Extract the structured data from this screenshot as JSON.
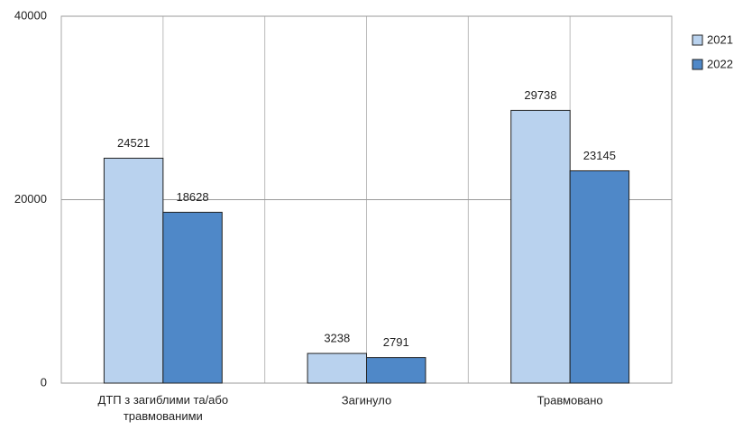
{
  "chart_data": {
    "type": "bar",
    "categories": [
      "ДТП з загиблими та/або травмованими",
      "Загинуло",
      "Травмовано"
    ],
    "series": [
      {
        "name": "2021",
        "color": "#b9d2ee",
        "values": [
          24521,
          3238,
          29738
        ]
      },
      {
        "name": "2022",
        "color": "#4f88c8",
        "values": [
          18628,
          2791,
          23145
        ]
      }
    ],
    "ylim": [
      0,
      40000
    ],
    "yticks": [
      0,
      20000,
      40000
    ],
    "grid": true,
    "legend": "right"
  }
}
